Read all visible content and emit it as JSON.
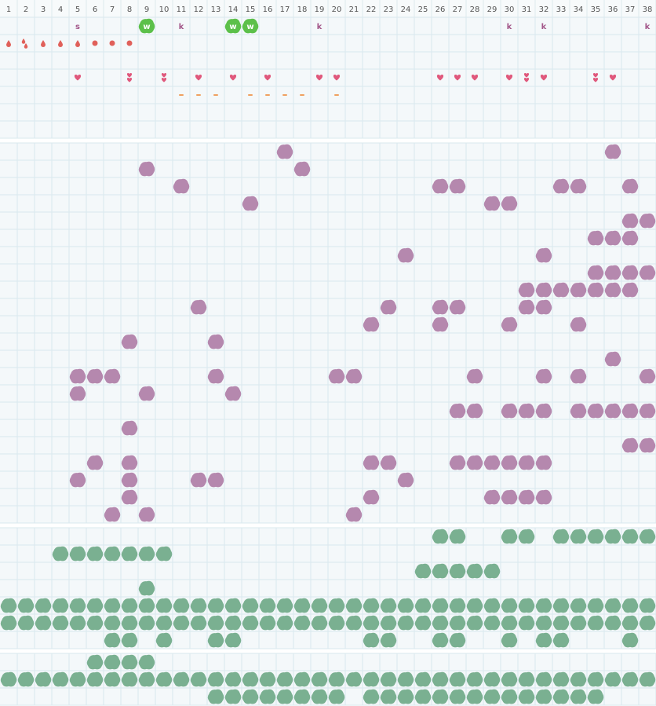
{
  "columns": [
    1,
    2,
    3,
    4,
    5,
    6,
    7,
    8,
    9,
    10,
    11,
    12,
    13,
    14,
    15,
    16,
    17,
    18,
    19,
    20,
    21,
    22,
    23,
    24,
    25,
    26,
    27,
    28,
    29,
    30,
    31,
    32,
    33,
    34,
    35,
    36,
    37,
    38
  ],
  "sections": [
    {
      "rows": [
        {
          "color": "#a3588a",
          "marks": [
            {
              "col": 5,
              "text": "s"
            },
            {
              "col": 9,
              "text": "w",
              "background": "#5cc04a",
              "text_color": "#ffffff"
            },
            {
              "col": 11,
              "text": "k"
            },
            {
              "col": 14,
              "text": "w",
              "background": "#5cc04a",
              "text_color": "#ffffff"
            },
            {
              "col": 15,
              "text": "w",
              "background": "#5cc04a",
              "text_color": "#ffffff"
            },
            {
              "col": 19,
              "text": "k"
            },
            {
              "col": 30,
              "text": "k"
            },
            {
              "col": 32,
              "text": "k"
            },
            {
              "col": 38,
              "text": "k"
            }
          ]
        },
        {
          "color": "#e0605a",
          "marks": [
            {
              "col": 1,
              "icon": "drop",
              "count": 1
            },
            {
              "col": 2,
              "icon": "drop",
              "count": 2
            },
            {
              "col": 3,
              "icon": "drop",
              "count": 1
            },
            {
              "col": 4,
              "icon": "drop",
              "count": 1
            },
            {
              "col": 5,
              "icon": "drop",
              "count": 1
            },
            {
              "col": 6,
              "icon": "circle",
              "count": 1
            },
            {
              "col": 7,
              "icon": "circle",
              "count": 1
            },
            {
              "col": 8,
              "icon": "circle",
              "count": 1
            }
          ]
        },
        {
          "marks": []
        },
        {
          "color": "#e0587c",
          "marks": [
            {
              "col": 5,
              "icon": "heart",
              "count": 1
            },
            {
              "col": 8,
              "icon": "heart",
              "count": 2
            },
            {
              "col": 10,
              "icon": "heart",
              "count": 2
            },
            {
              "col": 12,
              "icon": "heart",
              "count": 1
            },
            {
              "col": 14,
              "icon": "heart",
              "count": 1
            },
            {
              "col": 16,
              "icon": "heart",
              "count": 1
            },
            {
              "col": 19,
              "icon": "heart",
              "count": 1
            },
            {
              "col": 20,
              "icon": "heart",
              "count": 1
            },
            {
              "col": 26,
              "icon": "heart",
              "count": 1
            },
            {
              "col": 27,
              "icon": "heart",
              "count": 1
            },
            {
              "col": 28,
              "icon": "heart",
              "count": 1
            },
            {
              "col": 30,
              "icon": "heart",
              "count": 1
            },
            {
              "col": 31,
              "icon": "heart",
              "count": 2
            },
            {
              "col": 32,
              "icon": "heart",
              "count": 1
            },
            {
              "col": 35,
              "icon": "heart",
              "count": 2
            },
            {
              "col": 36,
              "icon": "heart",
              "count": 1
            }
          ]
        },
        {
          "color": "#f0a060",
          "marks": [
            {
              "col": 11,
              "icon": "dash",
              "count": 1
            },
            {
              "col": 12,
              "icon": "dash",
              "count": 1
            },
            {
              "col": 13,
              "icon": "dash",
              "count": 1
            },
            {
              "col": 15,
              "icon": "dash",
              "count": 1
            },
            {
              "col": 16,
              "icon": "dash",
              "count": 1
            },
            {
              "col": 17,
              "icon": "dash",
              "count": 1
            },
            {
              "col": 18,
              "icon": "dash",
              "count": 1
            },
            {
              "col": 20,
              "icon": "dash",
              "count": 1
            }
          ]
        },
        {
          "marks": []
        },
        {
          "marks": []
        }
      ]
    },
    {
      "color": "#b283aa",
      "rows": [
        [
          17,
          36
        ],
        [
          9,
          18
        ],
        [
          11,
          26,
          27,
          33,
          34,
          37
        ],
        [
          15,
          29,
          30
        ],
        [
          37,
          38
        ],
        [
          35,
          36,
          37
        ],
        [
          24,
          32
        ],
        [
          35,
          36,
          37,
          38
        ],
        [
          31,
          32,
          33,
          34,
          35,
          36,
          37
        ],
        [
          12,
          23,
          26,
          27,
          31,
          32
        ],
        [
          22,
          26,
          30,
          34
        ],
        [
          8,
          13
        ],
        [
          36
        ],
        [
          5,
          6,
          7,
          13,
          20,
          21,
          28,
          32,
          34,
          38
        ],
        [
          5,
          9,
          14
        ],
        [
          27,
          28,
          30,
          31,
          32,
          34,
          35,
          36,
          37,
          38
        ],
        [
          8
        ],
        [
          37,
          38
        ],
        [
          6,
          8,
          22,
          23,
          27,
          28,
          29,
          30,
          31,
          32
        ],
        [
          5,
          8,
          12,
          13,
          24
        ],
        [
          8,
          22,
          29,
          30,
          31,
          32
        ],
        [
          7,
          9,
          21
        ]
      ]
    },
    {
      "color": "#74ad8c",
      "rows": [
        [
          26,
          27,
          30,
          31,
          33,
          34,
          35,
          36,
          37,
          38
        ],
        [
          4,
          5,
          6,
          7,
          8,
          9,
          10
        ],
        [
          25,
          26,
          27,
          28,
          29
        ],
        [
          9
        ],
        [
          1,
          2,
          3,
          4,
          5,
          6,
          7,
          8,
          9,
          10,
          11,
          12,
          13,
          14,
          15,
          16,
          17,
          18,
          19,
          20,
          21,
          22,
          23,
          24,
          25,
          26,
          27,
          28,
          29,
          30,
          31,
          32,
          33,
          34,
          35,
          36,
          37,
          38
        ],
        [
          1,
          2,
          3,
          4,
          5,
          6,
          7,
          8,
          9,
          10,
          11,
          12,
          13,
          14,
          15,
          16,
          17,
          18,
          19,
          20,
          21,
          22,
          23,
          24,
          25,
          26,
          27,
          28,
          29,
          30,
          31,
          32,
          33,
          34,
          35,
          36,
          37,
          38
        ],
        [
          7,
          8,
          10,
          13,
          14,
          22,
          23,
          26,
          27,
          30,
          32,
          33,
          37
        ]
      ]
    },
    {
      "color": "#74ad8c",
      "rows": [
        [
          6,
          7,
          8,
          9
        ],
        [
          1,
          2,
          3,
          4,
          5,
          6,
          7,
          8,
          9,
          10,
          11,
          12,
          13,
          14,
          15,
          16,
          17,
          18,
          19,
          20,
          21,
          22,
          23,
          24,
          25,
          26,
          27,
          28,
          29,
          30,
          31,
          32,
          33,
          34,
          35,
          36,
          37,
          38
        ],
        [
          13,
          14,
          15,
          16,
          17,
          18,
          19,
          20,
          22,
          23,
          24,
          25,
          26,
          27,
          28,
          29,
          30,
          31,
          32,
          33,
          34,
          35
        ]
      ]
    }
  ]
}
